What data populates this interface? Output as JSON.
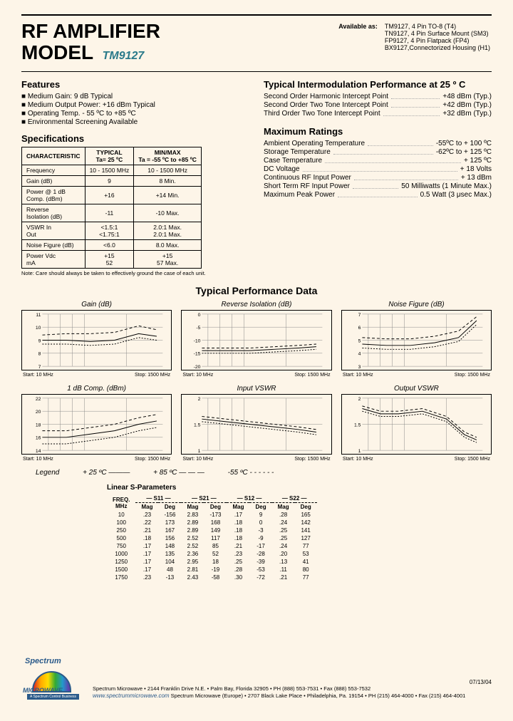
{
  "title": {
    "line1": "RF AMPLIFIER",
    "line2": "MODEL",
    "code": "TM9127"
  },
  "available": {
    "label": "Available as:",
    "items": [
      "TM9127, 4 Pin TO-8 (T4)",
      "TN9127, 4 Pin Surface Mount (SM3)",
      "FP9127, 4 Pin Flatpack (FP4)",
      "BX9127,Connectorized Housing (H1)"
    ]
  },
  "features": {
    "heading": "Features",
    "items": [
      "Medium Gain: 9 dB Typical",
      "Medium Output Power: +16 dBm Typical",
      "Operating Temp. - 55 ºC to +85 ºC",
      "Environmental Screening Available"
    ]
  },
  "intermod": {
    "heading": "Typical Intermodulation Performance at 25 º C",
    "rows": [
      {
        "l": "Second Order Harmonic Intercept Point",
        "v": "+48 dBm (Typ.)"
      },
      {
        "l": "Second Order Two Tone Intercept Point",
        "v": "+42 dBm (Typ.)"
      },
      {
        "l": "Third Order Two Tone Intercept Point",
        "v": "+32 dBm (Typ.)"
      }
    ]
  },
  "specs": {
    "heading": "Specifications",
    "cols": [
      "CHARACTERISTIC",
      "TYPICAL\nTa= 25 ºC",
      "MIN/MAX\nTa = -55 ºC to +85 ºC"
    ],
    "rows": [
      [
        "Frequency",
        "10 - 1500 MHz",
        "10 - 1500 MHz"
      ],
      [
        "Gain (dB)",
        "9",
        "8 Min."
      ],
      [
        "Power @ 1 dB\nComp. (dBm)",
        "+16",
        "+14 Min."
      ],
      [
        "Reverse\nIsolation (dB)",
        "-11",
        "-10 Max."
      ],
      [
        "VSWR    In\n             Out",
        "<1.5:1\n<1.75:1",
        "2.0:1 Max.\n2.0:1 Max."
      ],
      [
        "Noise Figure (dB)",
        "<6.0",
        "8.0 Max."
      ],
      [
        "Power    Vdc\n              mA",
        "+15\n52",
        "+15\n57 Max."
      ]
    ],
    "note": "Note: Care should always be taken to effectively ground the case of each unit."
  },
  "maxratings": {
    "heading": "Maximum Ratings",
    "rows": [
      {
        "l": "Ambient Operating Temperature",
        "v": "-55ºC to + 100 ºC"
      },
      {
        "l": "Storage Temperature",
        "v": "-62ºC to + 125 ºC"
      },
      {
        "l": "Case Temperature",
        "v": "+ 125 ºC"
      },
      {
        "l": "DC Voltage",
        "v": "+ 18 Volts"
      },
      {
        "l": "Continuous RF Input Power",
        "v": "+ 13 dBm"
      },
      {
        "l": "Short Term RF Input Power",
        "v": "50 Milliwatts (1 Minute Max.)"
      },
      {
        "l": "Maximum Peak Power",
        "v": "0.5 Watt (3 μsec Max.)"
      }
    ]
  },
  "tpd": {
    "title": "Typical Performance Data",
    "charts": [
      {
        "title": "Gain (dB)",
        "ymin": 7,
        "ymax": 11,
        "yticks": [
          7,
          8,
          9,
          10,
          11
        ],
        "s25": [
          [
            0,
            9.0
          ],
          [
            20,
            9.0
          ],
          [
            40,
            8.9
          ],
          [
            60,
            9.0
          ],
          [
            80,
            9.5
          ],
          [
            95,
            9.3
          ]
        ],
        "s85": [
          [
            0,
            9.4
          ],
          [
            20,
            9.5
          ],
          [
            40,
            9.5
          ],
          [
            60,
            9.6
          ],
          [
            80,
            10.1
          ],
          [
            95,
            9.8
          ]
        ],
        "s55": [
          [
            0,
            8.7
          ],
          [
            20,
            8.7
          ],
          [
            40,
            8.6
          ],
          [
            60,
            8.7
          ],
          [
            80,
            9.2
          ],
          [
            95,
            9.0
          ]
        ]
      },
      {
        "title": "Reverse Isolation (dB)",
        "ymin": -20,
        "ymax": 0,
        "yticks": [
          -20,
          -15,
          -10,
          -5,
          0
        ],
        "s25": [
          [
            0,
            -14
          ],
          [
            20,
            -14
          ],
          [
            40,
            -14
          ],
          [
            60,
            -13.5
          ],
          [
            80,
            -13
          ],
          [
            95,
            -12.5
          ]
        ],
        "s85": [
          [
            0,
            -13
          ],
          [
            20,
            -13
          ],
          [
            40,
            -13
          ],
          [
            60,
            -12.5
          ],
          [
            80,
            -12
          ],
          [
            95,
            -11.5
          ]
        ],
        "s55": [
          [
            0,
            -15
          ],
          [
            20,
            -15
          ],
          [
            40,
            -15
          ],
          [
            60,
            -14.5
          ],
          [
            80,
            -14
          ],
          [
            95,
            -13.5
          ]
        ]
      },
      {
        "title": "Noise Figure (dB)",
        "ymin": 3,
        "ymax": 7,
        "yticks": [
          3,
          4,
          5,
          6,
          7
        ],
        "s25": [
          [
            0,
            4.7
          ],
          [
            20,
            4.6
          ],
          [
            40,
            4.6
          ],
          [
            60,
            4.8
          ],
          [
            80,
            5.2
          ],
          [
            95,
            6.5
          ]
        ],
        "s85": [
          [
            0,
            5.2
          ],
          [
            20,
            5.1
          ],
          [
            40,
            5.1
          ],
          [
            60,
            5.3
          ],
          [
            80,
            5.7
          ],
          [
            95,
            6.8
          ]
        ],
        "s55": [
          [
            0,
            4.4
          ],
          [
            20,
            4.3
          ],
          [
            40,
            4.3
          ],
          [
            60,
            4.5
          ],
          [
            80,
            4.9
          ],
          [
            95,
            6.2
          ]
        ]
      },
      {
        "title": "1 dB Comp. (dBm)",
        "ymin": 14,
        "ymax": 22,
        "yticks": [
          14,
          16,
          18,
          20,
          22
        ],
        "s25": [
          [
            0,
            16
          ],
          [
            20,
            16
          ],
          [
            40,
            16.5
          ],
          [
            60,
            17
          ],
          [
            80,
            18
          ],
          [
            95,
            18.5
          ]
        ],
        "s85": [
          [
            0,
            17
          ],
          [
            20,
            17
          ],
          [
            40,
            17.5
          ],
          [
            60,
            18
          ],
          [
            80,
            19
          ],
          [
            95,
            19.5
          ]
        ],
        "s55": [
          [
            0,
            15
          ],
          [
            20,
            15
          ],
          [
            40,
            15.5
          ],
          [
            60,
            16
          ],
          [
            80,
            17
          ],
          [
            95,
            17.5
          ]
        ]
      },
      {
        "title": "Input VSWR",
        "ymin": 1.0,
        "ymax": 2.0,
        "yticks": [
          1.0,
          1.5,
          2.0
        ],
        "s25": [
          [
            0,
            1.6
          ],
          [
            20,
            1.55
          ],
          [
            40,
            1.5
          ],
          [
            60,
            1.45
          ],
          [
            80,
            1.4
          ],
          [
            95,
            1.35
          ]
        ],
        "s85": [
          [
            0,
            1.65
          ],
          [
            20,
            1.6
          ],
          [
            40,
            1.55
          ],
          [
            60,
            1.5
          ],
          [
            80,
            1.45
          ],
          [
            95,
            1.4
          ]
        ],
        "s55": [
          [
            0,
            1.55
          ],
          [
            20,
            1.5
          ],
          [
            40,
            1.45
          ],
          [
            60,
            1.4
          ],
          [
            80,
            1.35
          ],
          [
            95,
            1.3
          ]
        ]
      },
      {
        "title": "Output VSWR",
        "ymin": 1.0,
        "ymax": 2.0,
        "yticks": [
          1.0,
          1.5,
          2.0
        ],
        "s25": [
          [
            0,
            1.8
          ],
          [
            15,
            1.7
          ],
          [
            30,
            1.7
          ],
          [
            50,
            1.75
          ],
          [
            70,
            1.6
          ],
          [
            85,
            1.3
          ],
          [
            95,
            1.2
          ]
        ],
        "s85": [
          [
            0,
            1.85
          ],
          [
            15,
            1.75
          ],
          [
            30,
            1.75
          ],
          [
            50,
            1.8
          ],
          [
            70,
            1.65
          ],
          [
            85,
            1.35
          ],
          [
            95,
            1.25
          ]
        ],
        "s55": [
          [
            0,
            1.75
          ],
          [
            15,
            1.65
          ],
          [
            30,
            1.65
          ],
          [
            50,
            1.7
          ],
          [
            70,
            1.55
          ],
          [
            85,
            1.25
          ],
          [
            95,
            1.15
          ]
        ]
      }
    ],
    "xlabel_start": "Start: 10 MHz",
    "xlabel_stop": "Stop: 1500 MHz",
    "xgrids": [
      5,
      15,
      25,
      35,
      70
    ]
  },
  "legend": {
    "label": "Legend",
    "t25": "+ 25 ºC ———",
    "t85": "+ 85 ºC — — —",
    "t55": "-55 ºC - - - - - -"
  },
  "sparam": {
    "title": "Linear S-Parameters",
    "groups": [
      "S11",
      "S21",
      "S12",
      "S22"
    ],
    "col_freq": "FREQ.\nMHz",
    "sub": [
      "Mag",
      "Deg"
    ],
    "rows": [
      [
        "10",
        ".23",
        "-156",
        "2.83",
        "-173",
        ".17",
        "9",
        ".28",
        "165"
      ],
      [
        "100",
        ".22",
        "173",
        "2.89",
        "168",
        ".18",
        "0",
        ".24",
        "142"
      ],
      [
        "250",
        ".21",
        "167",
        "2.89",
        "149",
        ".18",
        "-3",
        ".25",
        "141"
      ],
      [
        "500",
        ".18",
        "156",
        "2.52",
        "117",
        ".18",
        "-9",
        ".25",
        "127"
      ],
      [
        "750",
        ".17",
        "148",
        "2.52",
        "85",
        ".21",
        "-17",
        ".24",
        "77"
      ],
      [
        "1000",
        ".17",
        "135",
        "2.36",
        "52",
        ".23",
        "-28",
        ".20",
        "53"
      ],
      [
        "1250",
        ".17",
        "104",
        "2.95",
        "18",
        ".25",
        "-39",
        ".13",
        "41"
      ],
      [
        "1500",
        ".17",
        "48",
        "2.81",
        "-19",
        ".28",
        "-53",
        ".11",
        "80"
      ],
      [
        "1750",
        ".23",
        "-13",
        "2.43",
        "-58",
        ".30",
        "-72",
        ".21",
        "77"
      ]
    ]
  },
  "logo": {
    "top": "Spectrum",
    "bottom": "MICROWAVE",
    "tag": "A Spectrum Control Business"
  },
  "footer": {
    "line1": "Spectrum Microwave • 2144 Franklin Drive N.E. • Palm Bay, Florida 32905 • PH (888) 553-7531 • Fax (888) 553-7532",
    "line2": "Spectrum Microwave (Europe) • 2707 Black Lake Place • Philadelphia, Pa. 19154 • PH (215) 464-4000 • Fax (215) 464-4001",
    "url": "www.spectrummicrowave.com"
  },
  "date": "07/13/04",
  "style": {
    "line_color": "#000",
    "bg": "#fdf5e8",
    "grid": "#888"
  }
}
